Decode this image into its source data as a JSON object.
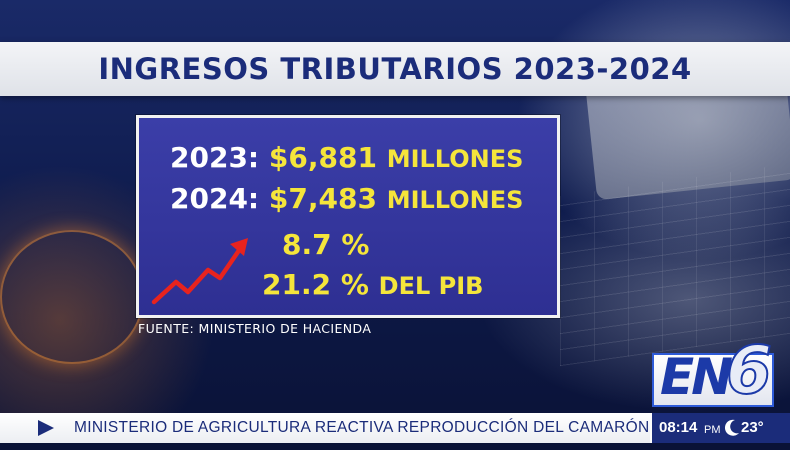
{
  "headline": "INGRESOS TRIBUTARIOS 2023-2024",
  "rows": [
    {
      "year": "2023:",
      "amount": "$6,881",
      "unit": "MILLONES"
    },
    {
      "year": "2024:",
      "amount": "$7,483",
      "unit": "MILLONES"
    }
  ],
  "growth": "8.7 %",
  "gdp_share": {
    "value": "21.2 %",
    "label": "DEL PIB"
  },
  "source": "FUENTE: MINISTERIO DE HACIENDA",
  "logo": {
    "letters": "EN",
    "number": "6"
  },
  "ticker": {
    "headline": "MINISTERIO DE AGRICULTURA REACTIVA REPRODUCCIÓN DEL CAMARÓN DE AGUA DULCE"
  },
  "clock": {
    "time": "08:14",
    "ampm": "PM",
    "weather_icon": "moon-icon",
    "temperature": "23°"
  },
  "colors": {
    "accent_yellow": "#f5e53b",
    "brand_blue": "#1b2c7a",
    "arrow_red": "#e8231e"
  }
}
